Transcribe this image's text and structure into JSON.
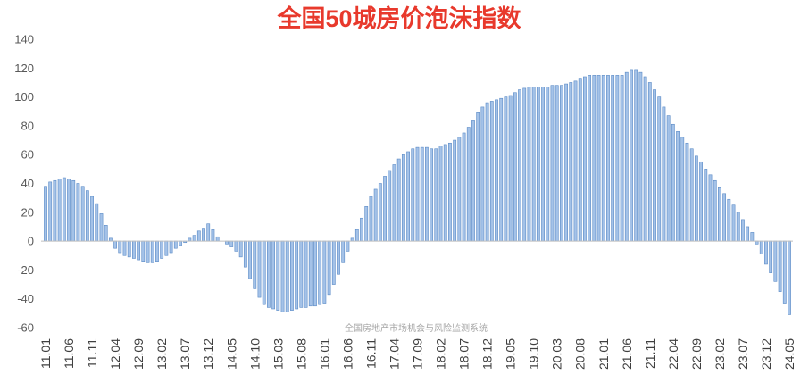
{
  "watermark": "全国房地产市场机会与风险监测系统",
  "colors": {
    "title": "#e8392c",
    "bar_fill": "#a4c2e8",
    "bar_stroke": "#5a8ac6",
    "zero_line": "#bfbfbf"
  },
  "chart_data": {
    "type": "bar",
    "title": "全国50城房价泡沫指数",
    "xlabel": "",
    "ylabel": "",
    "ylim": [
      -60,
      140
    ],
    "grid": false,
    "yticks": [
      -60,
      -40,
      -20,
      0,
      20,
      40,
      60,
      80,
      100,
      120,
      140
    ],
    "xticks": [
      "11.01",
      "11.06",
      "11.11",
      "12.04",
      "12.09",
      "13.02",
      "13.07",
      "13.12",
      "14.05",
      "14.10",
      "15.03",
      "15.08",
      "16.01",
      "16.06",
      "16.11",
      "17.04",
      "17.09",
      "18.02",
      "18.07",
      "18.12",
      "19.05",
      "19.10",
      "20.03",
      "20.08",
      "21.01",
      "21.06",
      "21.11",
      "22.04",
      "22.09",
      "23.02",
      "23.07",
      "23.12",
      "24.05"
    ],
    "values": [
      38,
      41,
      42,
      43,
      44,
      43,
      42,
      40,
      38,
      35,
      31,
      26,
      19,
      11,
      2,
      -5,
      -8,
      -10,
      -11,
      -12,
      -13,
      -14,
      -15,
      -15,
      -14,
      -12,
      -10,
      -8,
      -5,
      -3,
      -1,
      2,
      4,
      7,
      9,
      12,
      8,
      3,
      0,
      -2,
      -4,
      -7,
      -11,
      -18,
      -26,
      -33,
      -39,
      -44,
      -46,
      -47,
      -48,
      -49,
      -49,
      -48,
      -47,
      -46,
      -46,
      -45,
      -45,
      -44,
      -43,
      -37,
      -30,
      -23,
      -15,
      -7,
      2,
      8,
      16,
      24,
      31,
      36,
      40,
      45,
      49,
      53,
      57,
      60,
      62,
      64,
      65,
      65,
      65,
      64,
      64,
      66,
      67,
      68,
      70,
      72,
      75,
      79,
      84,
      89,
      93,
      96,
      97,
      98,
      99,
      100,
      101,
      103,
      105,
      106,
      107,
      107,
      107,
      107,
      107,
      108,
      108,
      108,
      109,
      110,
      111,
      113,
      114,
      115,
      115,
      115,
      115,
      115,
      115,
      115,
      115,
      117,
      119,
      119,
      117,
      114,
      110,
      105,
      100,
      93,
      87,
      81,
      76,
      72,
      68,
      64,
      59,
      55,
      50,
      46,
      42,
      37,
      33,
      29,
      25,
      20,
      15,
      10,
      6,
      -2,
      -9,
      -16,
      -22,
      -28,
      -35,
      -43,
      -51
    ]
  }
}
